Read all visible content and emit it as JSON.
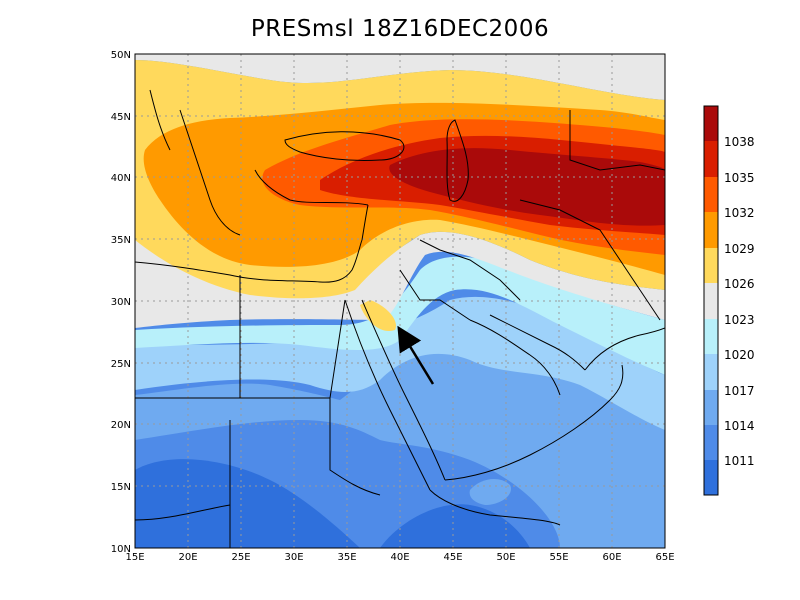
{
  "title": "PRESmsl  18Z16DEC2006",
  "axes": {
    "lon_ticks": [
      "15E",
      "20E",
      "25E",
      "30E",
      "35E",
      "40E",
      "45E",
      "50E",
      "55E",
      "60E",
      "65E"
    ],
    "lat_ticks": [
      "10N",
      "15N",
      "20N",
      "25N",
      "30N",
      "35N",
      "40N",
      "45N",
      "50N"
    ]
  },
  "colorbar": {
    "levels": [
      "1038",
      "1035",
      "1032",
      "1029",
      "1026",
      "1023",
      "1020",
      "1017",
      "1014",
      "1011"
    ],
    "colors": [
      "#aa0a0a",
      "#d91e00",
      "#ff5a00",
      "#ff9a00",
      "#ffd95c",
      "#e8e8e8",
      "#b8f0fa",
      "#9ed2fa",
      "#6faaf0",
      "#4f8be8",
      "#2f70dc"
    ]
  },
  "annotation": "arrow-pointing-northwest",
  "colors": {
    "frame": "#000000",
    "grid": "#9a9a9a",
    "coast": "#000000"
  }
}
